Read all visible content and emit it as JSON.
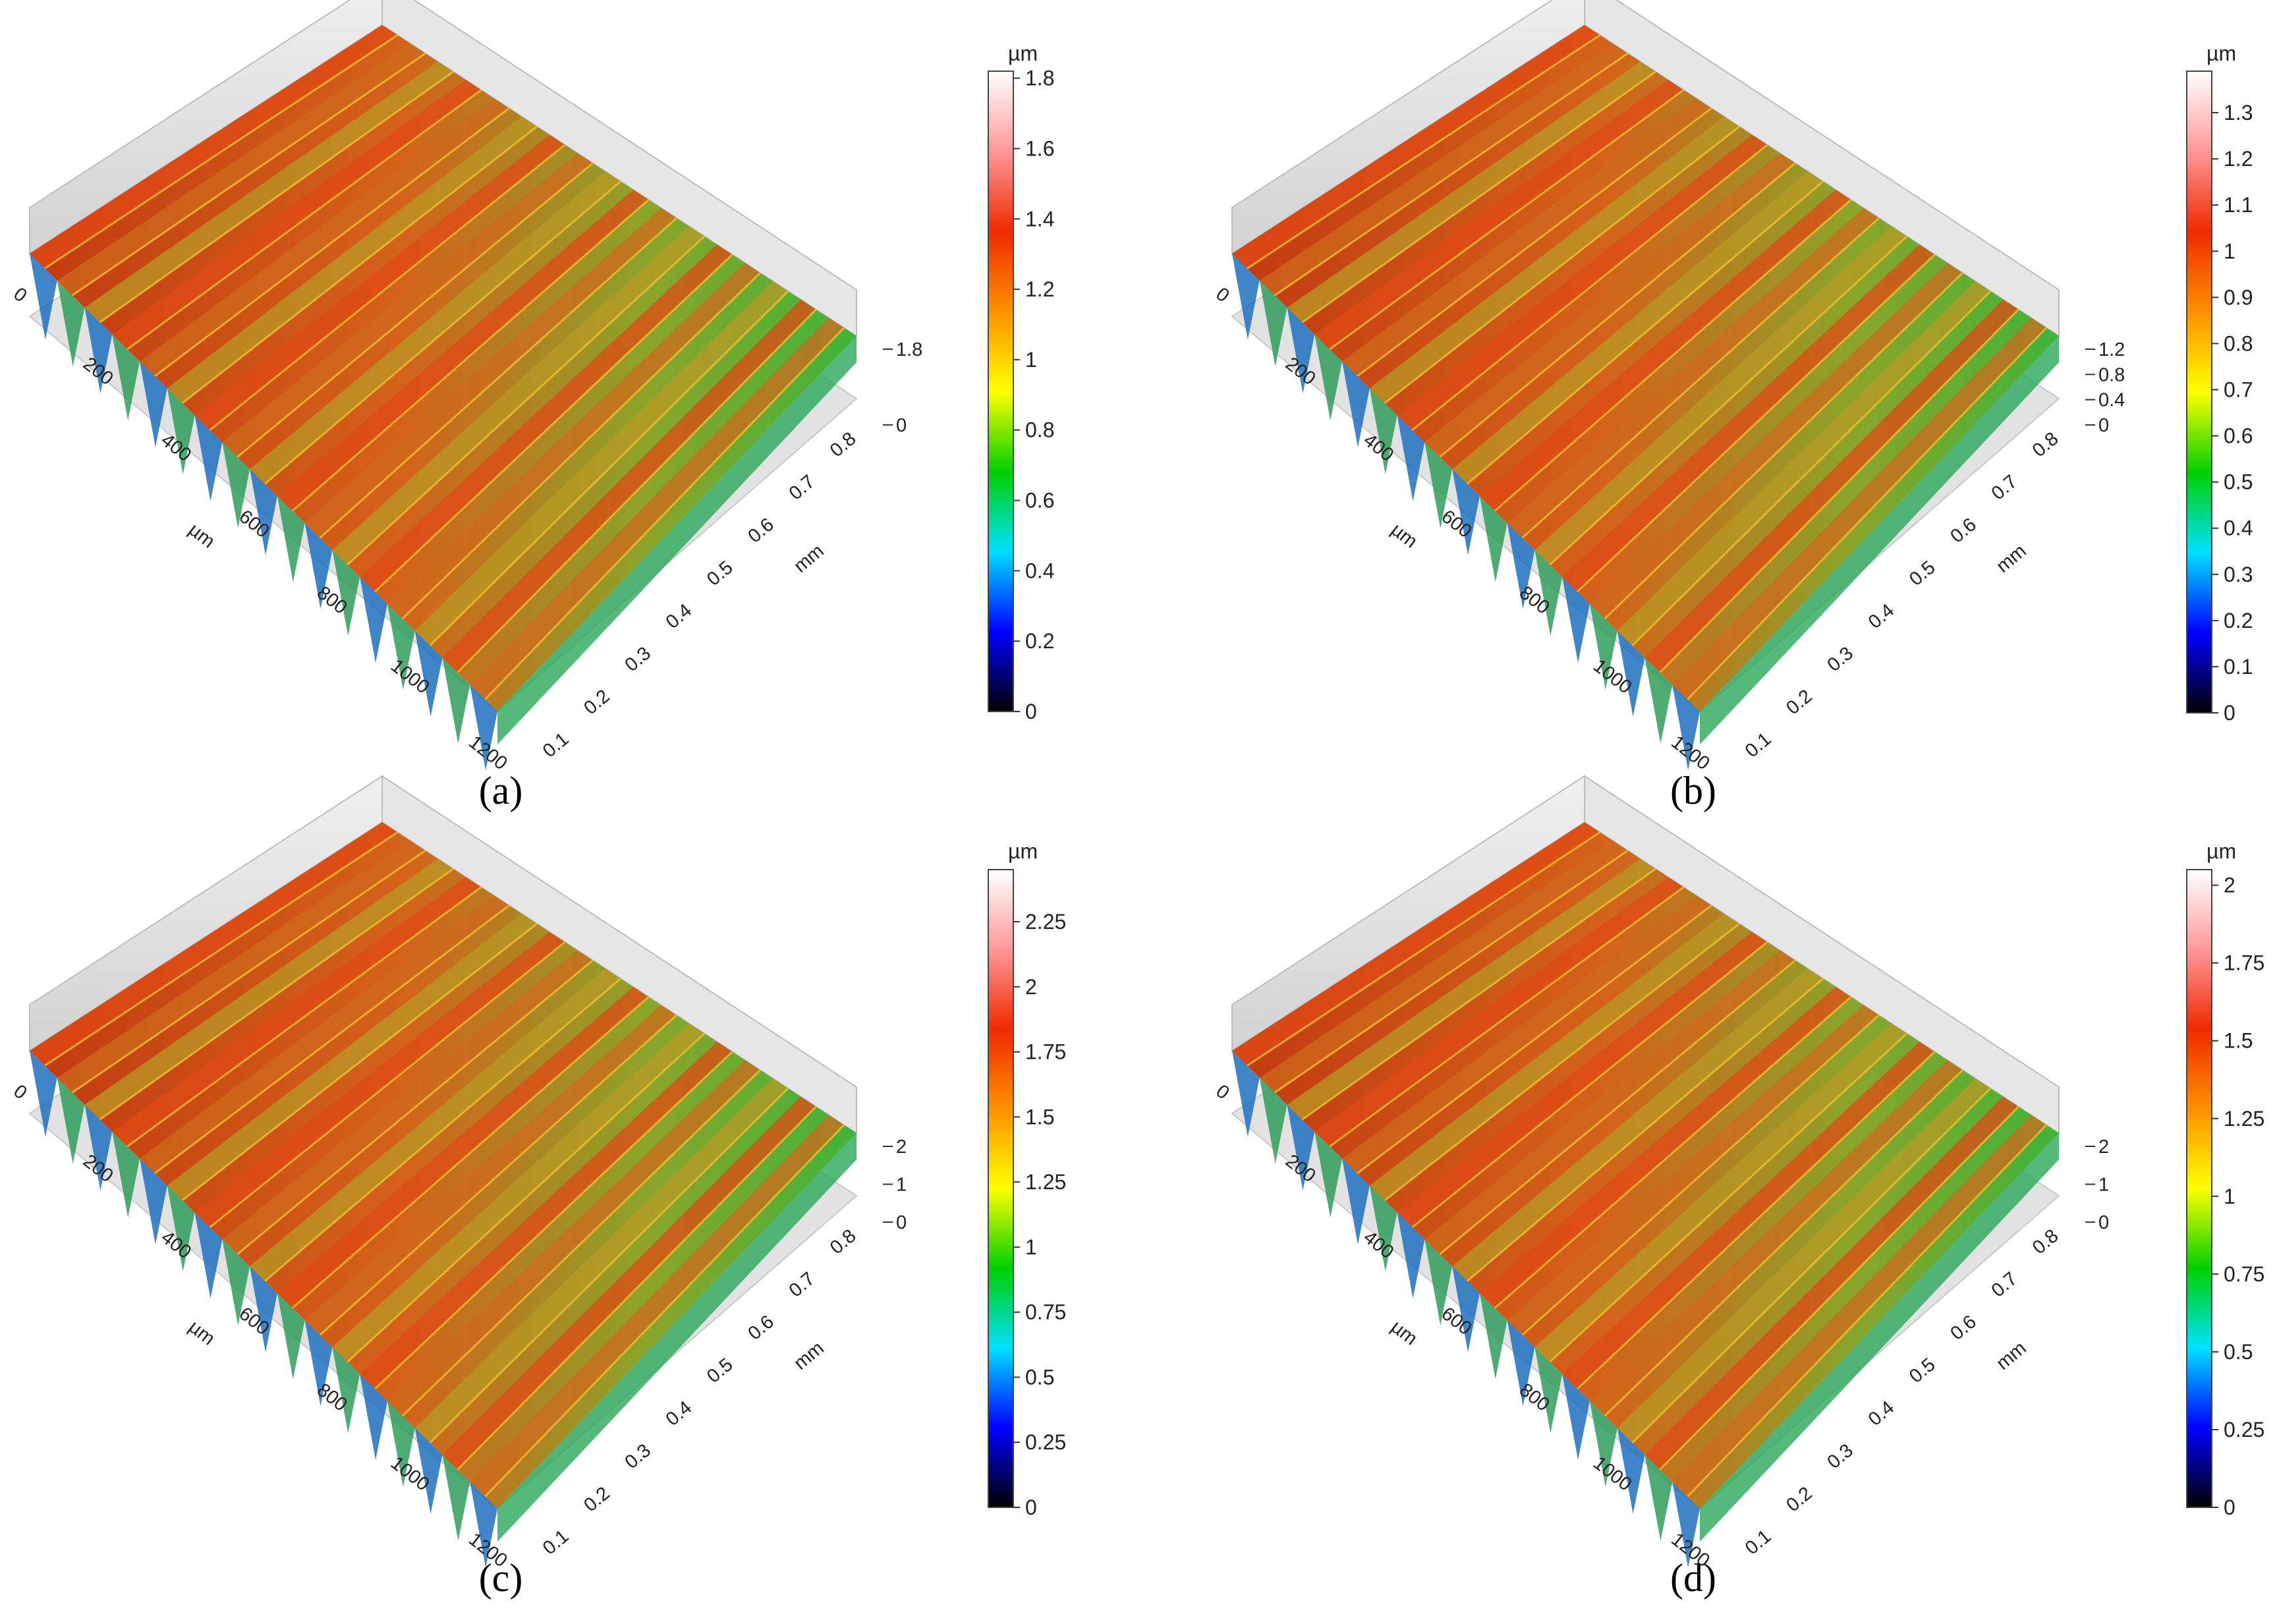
{
  "panels": [
    {
      "id": "a",
      "caption": "(a)",
      "caption_letter": "a",
      "xy_unit": "µm",
      "depth_unit": "mm",
      "x_ticks": [
        "0",
        "200",
        "400",
        "600",
        "800",
        "1000",
        "1200"
      ],
      "depth_ticks": [
        "0.1",
        "0.2",
        "0.3",
        "0.4",
        "0.5",
        "0.6",
        "0.7",
        "0.8"
      ],
      "z_ticks": [
        "0",
        "1.8"
      ],
      "colorbar_unit": "µm",
      "colorbar_ticks": [
        "0",
        "0.2",
        "0.4",
        "0.6",
        "0.8",
        "1",
        "1.2",
        "1.4",
        "1.6",
        "1.8"
      ],
      "colorbar_max": 1.82
    },
    {
      "id": "b",
      "caption": "(b)",
      "caption_letter": "b",
      "xy_unit": "µm",
      "depth_unit": "mm",
      "x_ticks": [
        "0",
        "200",
        "400",
        "600",
        "800",
        "1000",
        "1200"
      ],
      "depth_ticks": [
        "0.1",
        "0.2",
        "0.3",
        "0.4",
        "0.5",
        "0.6",
        "0.7",
        "0.8"
      ],
      "z_ticks": [
        "0",
        "0.4",
        "0.8",
        "1.2"
      ],
      "colorbar_unit": "µm",
      "colorbar_ticks": [
        "0",
        "0.1",
        "0.2",
        "0.3",
        "0.4",
        "0.5",
        "0.6",
        "0.7",
        "0.8",
        "0.9",
        "1",
        "1.1",
        "1.2",
        "1.3"
      ],
      "colorbar_max": 1.39
    },
    {
      "id": "c",
      "caption": "(c)",
      "caption_letter": "c",
      "xy_unit": "µm",
      "depth_unit": "mm",
      "x_ticks": [
        "0",
        "200",
        "400",
        "600",
        "800",
        "1000",
        "1200"
      ],
      "depth_ticks": [
        "0.1",
        "0.2",
        "0.3",
        "0.4",
        "0.5",
        "0.6",
        "0.7",
        "0.8"
      ],
      "z_ticks": [
        "0",
        "1",
        "2"
      ],
      "colorbar_unit": "µm",
      "colorbar_ticks": [
        "0",
        "0.25",
        "0.5",
        "0.75",
        "1",
        "1.25",
        "1.5",
        "1.75",
        "2",
        "2.25"
      ],
      "colorbar_max": 2.45
    },
    {
      "id": "d",
      "caption": "(d)",
      "caption_letter": "d",
      "xy_unit": "µm",
      "depth_unit": "mm",
      "x_ticks": [
        "0",
        "200",
        "400",
        "600",
        "800",
        "1000",
        "1200"
      ],
      "depth_ticks": [
        "0.1",
        "0.2",
        "0.3",
        "0.4",
        "0.5",
        "0.6",
        "0.7",
        "0.8"
      ],
      "z_ticks": [
        "0",
        "1",
        "2"
      ],
      "colorbar_unit": "µm",
      "colorbar_ticks": [
        "0",
        "0.25",
        "0.5",
        "0.75",
        "1",
        "1.25",
        "1.5",
        "1.75",
        "2"
      ],
      "colorbar_max": 2.05
    }
  ],
  "colormap": [
    "#000000",
    "#0000ff",
    "#00e0ff",
    "#00d000",
    "#ffff00",
    "#ff9000",
    "#ee2a00",
    "#ff9898",
    "#ffffff"
  ]
}
